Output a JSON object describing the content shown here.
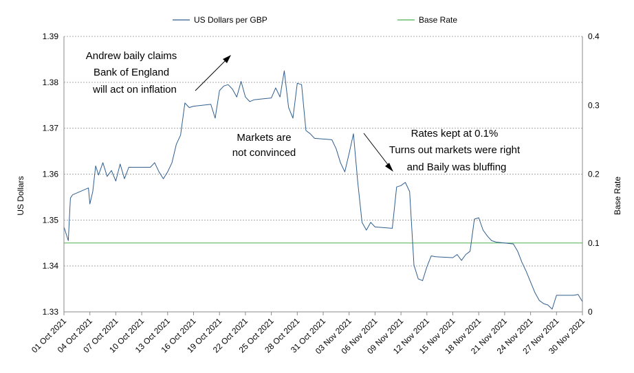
{
  "chart_data": {
    "type": "line",
    "legend": {
      "placement": "top",
      "entries": [
        {
          "name": "US Dollars per GBP",
          "color": "#2e5d8e"
        },
        {
          "name": "Base Rate",
          "color": "#4caf50"
        }
      ]
    },
    "ylabel_left": "US Dollars",
    "ylabel_right": "Base Rate",
    "ylim_left": [
      1.33,
      1.39
    ],
    "ylim_right": [
      0,
      0.4
    ],
    "yticks_left": [
      "1.33",
      "1.34",
      "1.35",
      "1.36",
      "1.37",
      "1.38",
      "1.39"
    ],
    "yticks_right": [
      "0",
      "0.1",
      "0.2",
      "0.3",
      "0.4"
    ],
    "xticks": [
      "01 Oct 2021",
      "04 Oct 2021",
      "07 Oct 2021",
      "10 Oct 2021",
      "13 Oct 2021",
      "16 Oct 2021",
      "19 Oct 2021",
      "22 Oct 2021",
      "25 Oct 2021",
      "28 Oct 2021",
      "31 Oct 2021",
      "03 Nov 2021",
      "06 Nov 2021",
      "09 Nov 2021",
      "12 Nov 2021",
      "15 Nov 2021",
      "18 Nov 2021",
      "21 Nov 2021",
      "24 Nov 2021",
      "27 Nov 2021",
      "30 Nov 2021"
    ],
    "xlim": [
      "2021-10-01",
      "2021-11-30"
    ],
    "grid": "horizontal dashed",
    "series": [
      {
        "name": "US Dollars per GBP",
        "axis": "left",
        "color": "#2e5d8e",
        "x": [
          "2021-10-01",
          "2021-10-01 12:00",
          "2021-10-01 18:00",
          "2021-10-02",
          "2021-10-03 20:00",
          "2021-10-04",
          "2021-10-04 08:00",
          "2021-10-04 16:00",
          "2021-10-05",
          "2021-10-05 12:00",
          "2021-10-06",
          "2021-10-06 12:00",
          "2021-10-07",
          "2021-10-07 12:00",
          "2021-10-08",
          "2021-10-08 12:00",
          "2021-10-09",
          "2021-10-11",
          "2021-10-11 12:00",
          "2021-10-12",
          "2021-10-12 12:00",
          "2021-10-13",
          "2021-10-13 12:00",
          "2021-10-14",
          "2021-10-14 12:00",
          "2021-10-15",
          "2021-10-15 12:00",
          "2021-10-16",
          "2021-10-18",
          "2021-10-18 12:00",
          "2021-10-19",
          "2021-10-19 12:00",
          "2021-10-20",
          "2021-10-20 12:00",
          "2021-10-21",
          "2021-10-21 12:00",
          "2021-10-22",
          "2021-10-22 12:00",
          "2021-10-23",
          "2021-10-25",
          "2021-10-25 12:00",
          "2021-10-26",
          "2021-10-26 12:00",
          "2021-10-27",
          "2021-10-27 12:00",
          "2021-10-28",
          "2021-10-28 12:00",
          "2021-10-29",
          "2021-10-29 12:00",
          "2021-10-30",
          "2021-11-01",
          "2021-11-01 12:00",
          "2021-11-02",
          "2021-11-02 12:00",
          "2021-11-03",
          "2021-11-03 12:00",
          "2021-11-04",
          "2021-11-04 12:00",
          "2021-11-05",
          "2021-11-05 12:00",
          "2021-11-06",
          "2021-11-08",
          "2021-11-08 12:00",
          "2021-11-09",
          "2021-11-09 12:00",
          "2021-11-10",
          "2021-11-10 12:00",
          "2021-11-11",
          "2021-11-11 12:00",
          "2021-11-12",
          "2021-11-12 12:00",
          "2021-11-13",
          "2021-11-15",
          "2021-11-15 12:00",
          "2021-11-16",
          "2021-11-16 12:00",
          "2021-11-17",
          "2021-11-17 12:00",
          "2021-11-18",
          "2021-11-18 12:00",
          "2021-11-19",
          "2021-11-19 12:00",
          "2021-11-20",
          "2021-11-22",
          "2021-11-22 12:00",
          "2021-11-23",
          "2021-11-23 12:00",
          "2021-11-24",
          "2021-11-24 12:00",
          "2021-11-25",
          "2021-11-25 12:00",
          "2021-11-26",
          "2021-11-26 12:00",
          "2021-11-27",
          "2021-11-29",
          "2021-11-29 12:00",
          "2021-11-30"
        ],
        "values": [
          1.3485,
          1.3455,
          1.3548,
          1.3555,
          1.357,
          1.3535,
          1.3562,
          1.3618,
          1.3598,
          1.3625,
          1.3595,
          1.3608,
          1.3585,
          1.3622,
          1.359,
          1.3615,
          1.3615,
          1.3615,
          1.3625,
          1.3605,
          1.359,
          1.3605,
          1.3625,
          1.3665,
          1.3685,
          1.3755,
          1.3745,
          1.3748,
          1.3752,
          1.3722,
          1.3782,
          1.3792,
          1.3795,
          1.3785,
          1.3768,
          1.3802,
          1.3768,
          1.3758,
          1.3762,
          1.3766,
          1.3788,
          1.3768,
          1.3825,
          1.3745,
          1.3722,
          1.3798,
          1.3795,
          1.3695,
          1.3688,
          1.3678,
          1.3675,
          1.3655,
          1.3625,
          1.3605,
          1.3645,
          1.3688,
          1.3582,
          1.3495,
          1.3478,
          1.3495,
          1.3485,
          1.3482,
          1.3572,
          1.3575,
          1.3582,
          1.3562,
          1.3402,
          1.3372,
          1.3368,
          1.3398,
          1.3422,
          1.342,
          1.3418,
          1.3425,
          1.3412,
          1.3425,
          1.3432,
          1.3502,
          1.3505,
          1.3478,
          1.3465,
          1.3455,
          1.3452,
          1.3448,
          1.3432,
          1.3408,
          1.3388,
          1.3365,
          1.3342,
          1.3325,
          1.3318,
          1.3315,
          1.3306,
          1.3336,
          1.3336,
          1.3338,
          1.3322
        ]
      },
      {
        "name": "Base Rate",
        "axis": "right",
        "color": "#4caf50",
        "x": [
          "2021-10-01",
          "2021-11-30"
        ],
        "values": [
          0.1,
          0.1
        ]
      }
    ],
    "annotations": [
      {
        "lines": [
          "Andrew baily claims",
          "Bank of England",
          "will act on inflation"
        ],
        "arrow": "up-right"
      },
      {
        "lines": [
          "Markets are",
          "not convinced"
        ]
      },
      {
        "lines": [
          "Rates kept at 0.1%",
          "Turns out markets were right",
          "and Baily was bluffing"
        ],
        "arrow": "down-right"
      }
    ]
  }
}
